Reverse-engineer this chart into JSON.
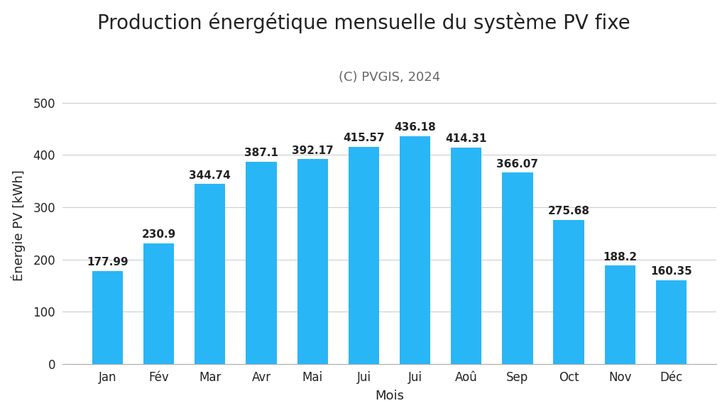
{
  "title": "Production énergétique mensuelle du système PV fixe",
  "subtitle": "(C) PVGIS, 2024",
  "xlabel": "Mois",
  "ylabel": "Énergie PV [kWh]",
  "months": [
    "Jan",
    "Fév",
    "Mar",
    "Avr",
    "Mai",
    "Jui",
    "Jui",
    "Aoû",
    "Sep",
    "Oct",
    "Nov",
    "Déc"
  ],
  "values": [
    177.99,
    230.9,
    344.74,
    387.1,
    392.17,
    415.57,
    436.18,
    414.31,
    366.07,
    275.68,
    188.2,
    160.35
  ],
  "bar_color": "#29B6F6",
  "ylim": [
    0,
    530
  ],
  "yticks": [
    0,
    100,
    200,
    300,
    400,
    500
  ],
  "title_fontsize": 20,
  "subtitle_fontsize": 13,
  "axis_label_fontsize": 13,
  "tick_fontsize": 12,
  "bar_label_fontsize": 11,
  "background_color": "#ffffff",
  "grid_color": "#cccccc"
}
